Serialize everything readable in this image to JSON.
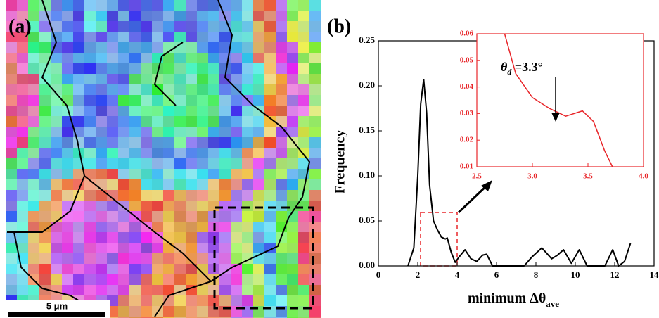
{
  "panel_a": {
    "label": "(a)",
    "scale_bar": "5 μm"
  },
  "chart_data": [
    {
      "type": "line",
      "panel_label": "(b)",
      "ylabel": "Frequency",
      "xlabel": "minimum  Δθ",
      "xlabel_sub": "ave",
      "color": "#000000",
      "x": [
        1.5,
        1.8,
        2.0,
        2.15,
        2.3,
        2.45,
        2.6,
        2.8,
        3.0,
        3.2,
        3.4,
        3.5,
        3.7,
        3.9,
        4.1,
        4.4,
        4.7,
        5.0,
        5.3,
        5.5,
        5.8,
        6.5,
        7.4,
        7.8,
        8.3,
        8.8,
        9.1,
        9.4,
        9.8,
        10.2,
        10.6,
        11.5,
        11.9,
        12.2,
        12.5,
        12.8
      ],
      "values": [
        0,
        0.02,
        0.1,
        0.18,
        0.207,
        0.17,
        0.09,
        0.05,
        0.04,
        0.032,
        0.03,
        0.031,
        0.015,
        0.004,
        0.01,
        0.018,
        0.008,
        0.005,
        0.012,
        0.013,
        0,
        0,
        0,
        0.01,
        0.02,
        0.008,
        0.012,
        0.018,
        0.003,
        0.018,
        0,
        0,
        0.018,
        0,
        0.005,
        0.025
      ],
      "xlim": [
        0,
        14
      ],
      "ylim": [
        0,
        0.25
      ],
      "xticks": [
        0,
        2,
        4,
        6,
        8,
        10,
        12,
        14
      ],
      "yticks": [
        {
          "value": 0,
          "label": "0.00"
        },
        {
          "value": 0.05,
          "label": "0.05"
        },
        {
          "value": 0.1,
          "label": "0.10"
        },
        {
          "value": 0.15,
          "label": "0.15"
        },
        {
          "value": 0.2,
          "label": "0.20"
        },
        {
          "value": 0.25,
          "label": "0.25"
        }
      ]
    },
    {
      "type": "line",
      "color": "#e8262a",
      "annotation": "θ",
      "annotation_sub": "d",
      "annotation_rest": " =3.3°",
      "x": [
        2.75,
        2.85,
        3.0,
        3.15,
        3.3,
        3.45,
        3.55,
        3.65,
        3.72
      ],
      "values": [
        0.06,
        0.045,
        0.036,
        0.032,
        0.029,
        0.031,
        0.027,
        0.016,
        0.01
      ],
      "xlim": [
        2.5,
        4.0
      ],
      "ylim": [
        0.01,
        0.06
      ],
      "xticks": [
        {
          "value": 2.5,
          "label": "2.5"
        },
        {
          "value": 3,
          "label": "3.0"
        },
        {
          "value": 3.5,
          "label": "3.5"
        },
        {
          "value": 4,
          "label": "4.0"
        }
      ],
      "yticks": [
        {
          "value": 0.01,
          "label": "0.01"
        },
        {
          "value": 0.02,
          "label": "0.02"
        },
        {
          "value": 0.03,
          "label": "0.03"
        },
        {
          "value": 0.04,
          "label": "0.04"
        },
        {
          "value": 0.05,
          "label": "0.05"
        },
        {
          "value": 0.06,
          "label": "0.06"
        }
      ]
    }
  ]
}
